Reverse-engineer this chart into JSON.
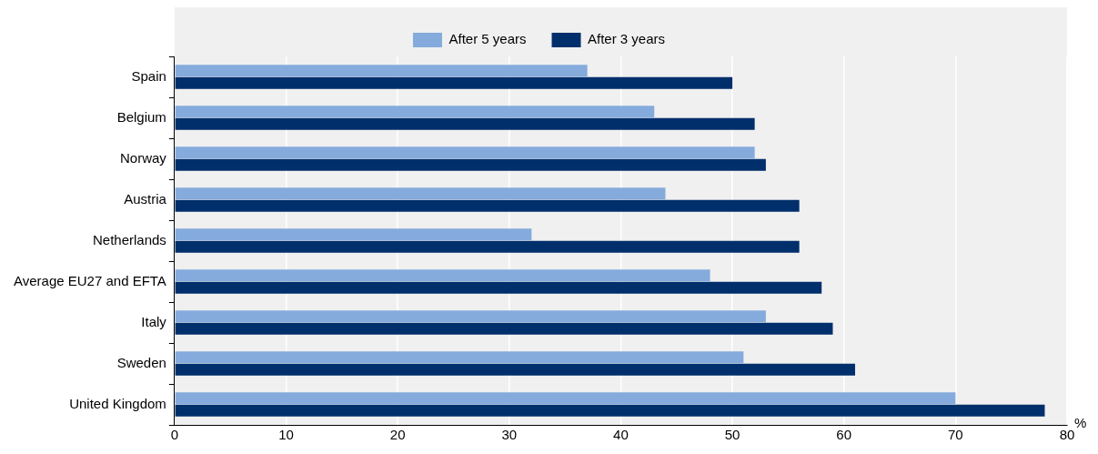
{
  "chart_data": {
    "type": "bar",
    "orientation": "horizontal",
    "xlabel": "%",
    "categories": [
      "Spain",
      "Belgium",
      "Norway",
      "Austria",
      "Netherlands",
      "Average EU27 and EFTA",
      "Italy",
      "Sweden",
      "United Kingdom"
    ],
    "series": [
      {
        "name": "After 5 years",
        "color": "#85abdd",
        "values": [
          37,
          43,
          52,
          44,
          32,
          48,
          53,
          51,
          70
        ]
      },
      {
        "name": "After 3 years",
        "color": "#002f6c",
        "values": [
          50,
          52,
          53,
          56,
          56,
          58,
          59,
          61,
          78
        ]
      }
    ],
    "xlim": [
      0,
      80
    ],
    "xticks": [
      0,
      10,
      20,
      30,
      40,
      50,
      60,
      70,
      80
    ],
    "grid": "x",
    "legend": "top"
  }
}
